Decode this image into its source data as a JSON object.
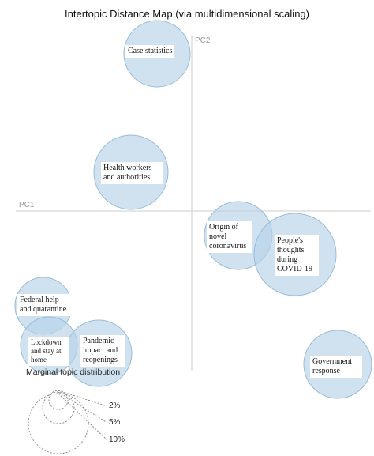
{
  "title": "Intertopic Distance Map (via multidimensional scaling)",
  "axes": {
    "x_label": "PC1",
    "y_label": "PC2"
  },
  "topics": [
    {
      "label": "Case statistics"
    },
    {
      "label": "Health workers and authorities"
    },
    {
      "label": "Origin of novel coronavirus"
    },
    {
      "label": "People's thoughts during COVID-19"
    },
    {
      "label": "Federal help and quarantine"
    },
    {
      "label": "Lockdown and stay at home"
    },
    {
      "label": "Pandemic impact and reopenings"
    },
    {
      "label": "Government response"
    }
  ],
  "legend": {
    "title": "Marginal topic distribution",
    "labels": [
      "2%",
      "5%",
      "10%"
    ]
  }
}
